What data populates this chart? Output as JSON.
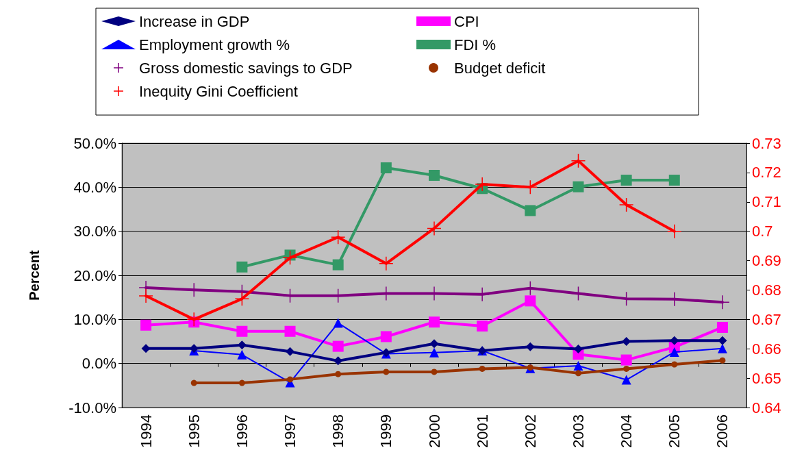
{
  "chart_data": {
    "type": "line",
    "ylabel": "Percent",
    "categories": [
      "1994",
      "1995",
      "1996",
      "1997",
      "1998",
      "1999",
      "2000",
      "2001",
      "2002",
      "2003",
      "2004",
      "2005",
      "2006"
    ],
    "series": [
      {
        "name": "Increase in GDP",
        "color": "#000080",
        "marker": "diamond",
        "values": [
          3.4,
          3.4,
          4.2,
          2.7,
          0.6,
          2.5,
          4.5,
          2.9,
          3.8,
          3.3,
          5.0,
          5.2,
          5.2
        ]
      },
      {
        "name": "CPI",
        "color": "#ff00ff",
        "marker": "square",
        "values": [
          8.7,
          9.4,
          7.3,
          7.3,
          3.9,
          6.1,
          9.4,
          8.5,
          14.2,
          2.1,
          0.8,
          3.7,
          8.2
        ]
      },
      {
        "name": "Employment growth %",
        "color": "#0000ff",
        "marker": "triangle",
        "values": [
          null,
          2.9,
          2.0,
          -4.3,
          9.2,
          2.2,
          2.5,
          2.9,
          -1.1,
          -0.5,
          -3.7,
          2.6,
          3.4
        ]
      },
      {
        "name": "FDI %",
        "color": "#339966",
        "marker": "square",
        "values": [
          null,
          null,
          21.9,
          24.6,
          22.4,
          44.4,
          42.7,
          39.7,
          34.7,
          40.1,
          41.6,
          41.6,
          null
        ]
      },
      {
        "name": "Gross domestic savings to GDP",
        "color": "#800080",
        "marker": "cross",
        "values": [
          17.2,
          16.7,
          16.3,
          15.4,
          15.4,
          15.9,
          15.9,
          15.7,
          17.1,
          15.9,
          14.7,
          14.6,
          13.9
        ]
      },
      {
        "name": "Budget deficit",
        "color": "#993300",
        "marker": "circle",
        "values": [
          null,
          -4.4,
          -4.4,
          -3.6,
          -2.4,
          -1.9,
          -1.9,
          -1.2,
          -0.9,
          -2.2,
          -1.2,
          -0.2,
          0.7
        ]
      },
      {
        "name": "Inequity Gini Coefficient",
        "color": "#ff0000",
        "marker": "cross",
        "axis": "y2",
        "values": [
          0.678,
          0.67,
          0.677,
          0.691,
          0.698,
          0.689,
          0.701,
          0.716,
          0.715,
          0.724,
          0.709,
          0.7,
          null
        ]
      }
    ],
    "ylim": [
      -10,
      50
    ],
    "yticks": [
      {
        "value": -10,
        "label": "-10.0%"
      },
      {
        "value": 0,
        "label": "0.0%"
      },
      {
        "value": 10,
        "label": "10.0%"
      },
      {
        "value": 20,
        "label": "20.0%"
      },
      {
        "value": 30,
        "label": "30.0%"
      },
      {
        "value": 40,
        "label": "40.0%"
      },
      {
        "value": 50,
        "label": "50.0%"
      }
    ],
    "y2lim": [
      0.64,
      0.73
    ],
    "y2ticks": [
      0.64,
      0.65,
      0.66,
      0.67,
      0.68,
      0.69,
      0.7,
      0.71,
      0.72,
      0.73
    ],
    "grid": "y",
    "legend": "top",
    "line_style": "solid"
  }
}
